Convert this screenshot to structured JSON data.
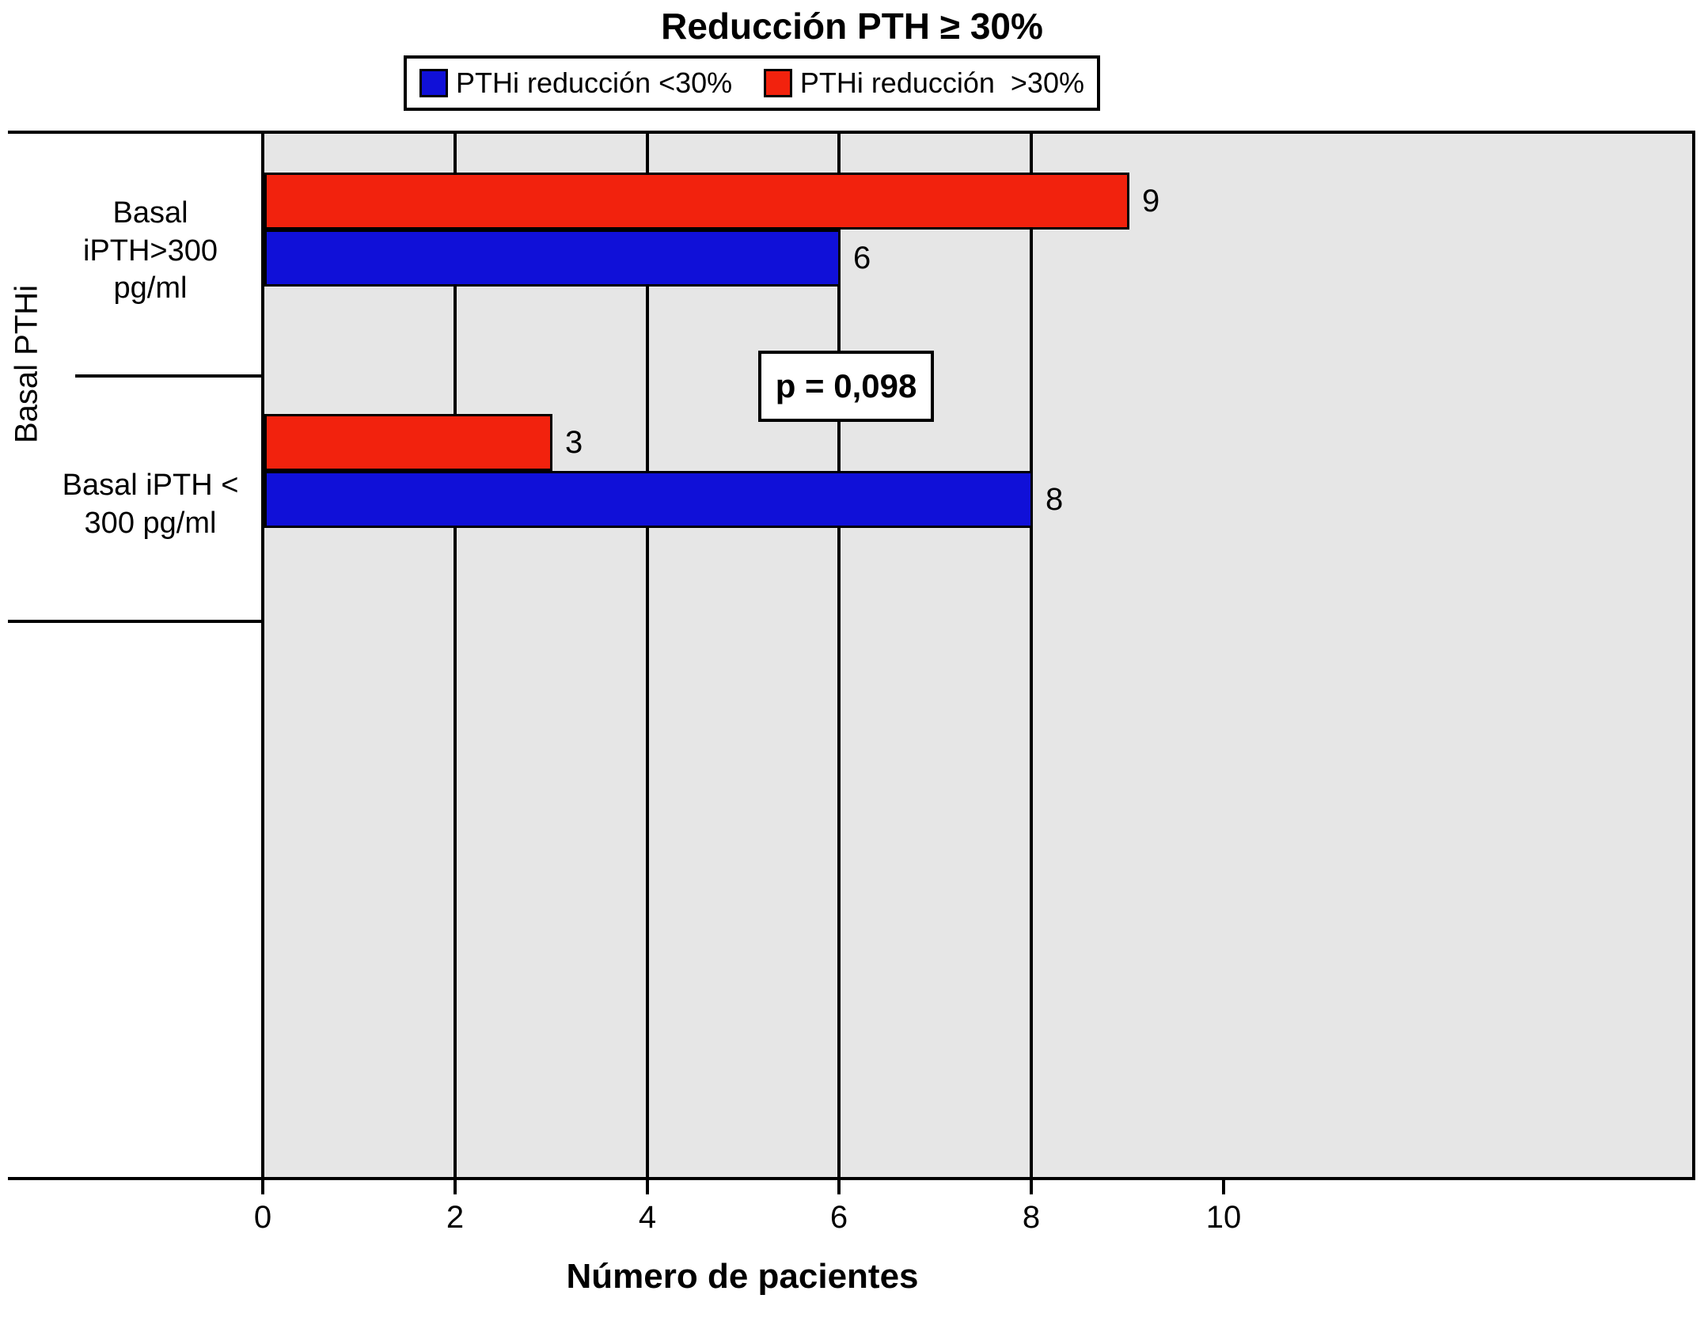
{
  "chart": {
    "title": "Reducción PTH ≥ 30%",
    "xlabel": "Número de pacientes",
    "ylabel": "Basal PTHi",
    "p_value": "p = 0,098"
  },
  "legend": {
    "items": [
      {
        "label": "PTHi reducción <30%",
        "color": "#1010d8"
      },
      {
        "label": "PTHi reducción  >30%",
        "color": "#f2220d"
      }
    ]
  },
  "y_axis": {
    "labels": [
      "Basal\niPTH>300\npg/ml",
      "Basal iPTH <\n300 pg/ml"
    ]
  },
  "chart_data": {
    "type": "bar",
    "orientation": "horizontal",
    "title": "Reducción PTH ≥ 30%",
    "xlabel": "Número de pacientes",
    "ylabel": "Basal PTHi",
    "categories": [
      "Basal iPTH>300 pg/ml",
      "Basal iPTH < 300 pg/ml"
    ],
    "series": [
      {
        "name": "PTHi reducción >30%",
        "color": "#f2220d",
        "values": [
          9,
          3
        ]
      },
      {
        "name": "PTHi reducción <30%",
        "color": "#1010d8",
        "values": [
          6,
          8
        ]
      }
    ],
    "xlim": [
      0,
      10
    ],
    "xticks": [
      0,
      2,
      4,
      6,
      8,
      10
    ],
    "annotation": "p = 0,098",
    "grid": true,
    "legend_position": "top",
    "plot_background": "#e6e6e6"
  }
}
